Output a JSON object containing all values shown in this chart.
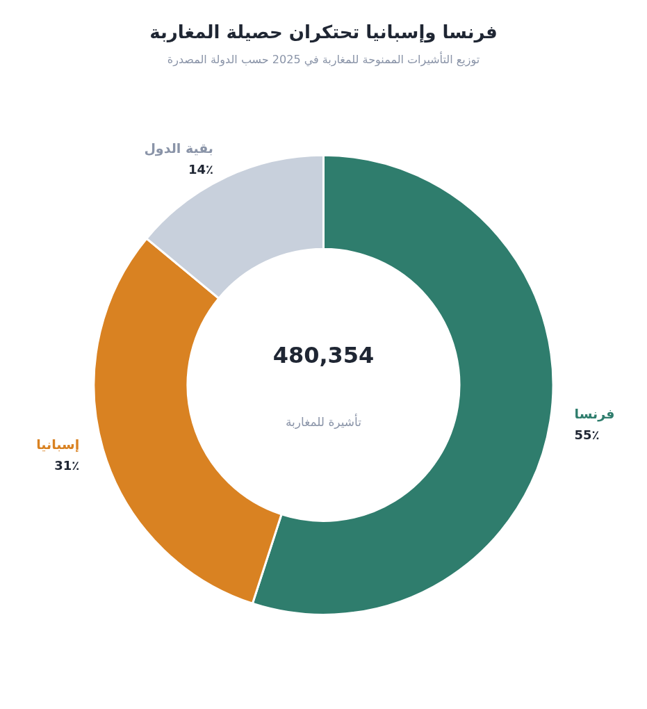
{
  "chart_data": {
    "type": "donut",
    "title": "فرنسا وإسبانيا تحتكران حصيلة المغاربة",
    "subtitle": "توزيع التأشيرات الممنوحة للمغاربة في 2025 حسب الدولة المصدرة",
    "categories": [
      "فرنسا",
      "إسبانيا",
      "بقية الدول"
    ],
    "values": [
      55,
      31,
      14
    ],
    "colors": [
      "#2f7d6d",
      "#d98222",
      "#c8d0dc"
    ],
    "value_labels": [
      "55٪",
      "31٪",
      "14٪"
    ],
    "annotations": [
      "480,354",
      "تأشيرة للمغاربة"
    ]
  }
}
